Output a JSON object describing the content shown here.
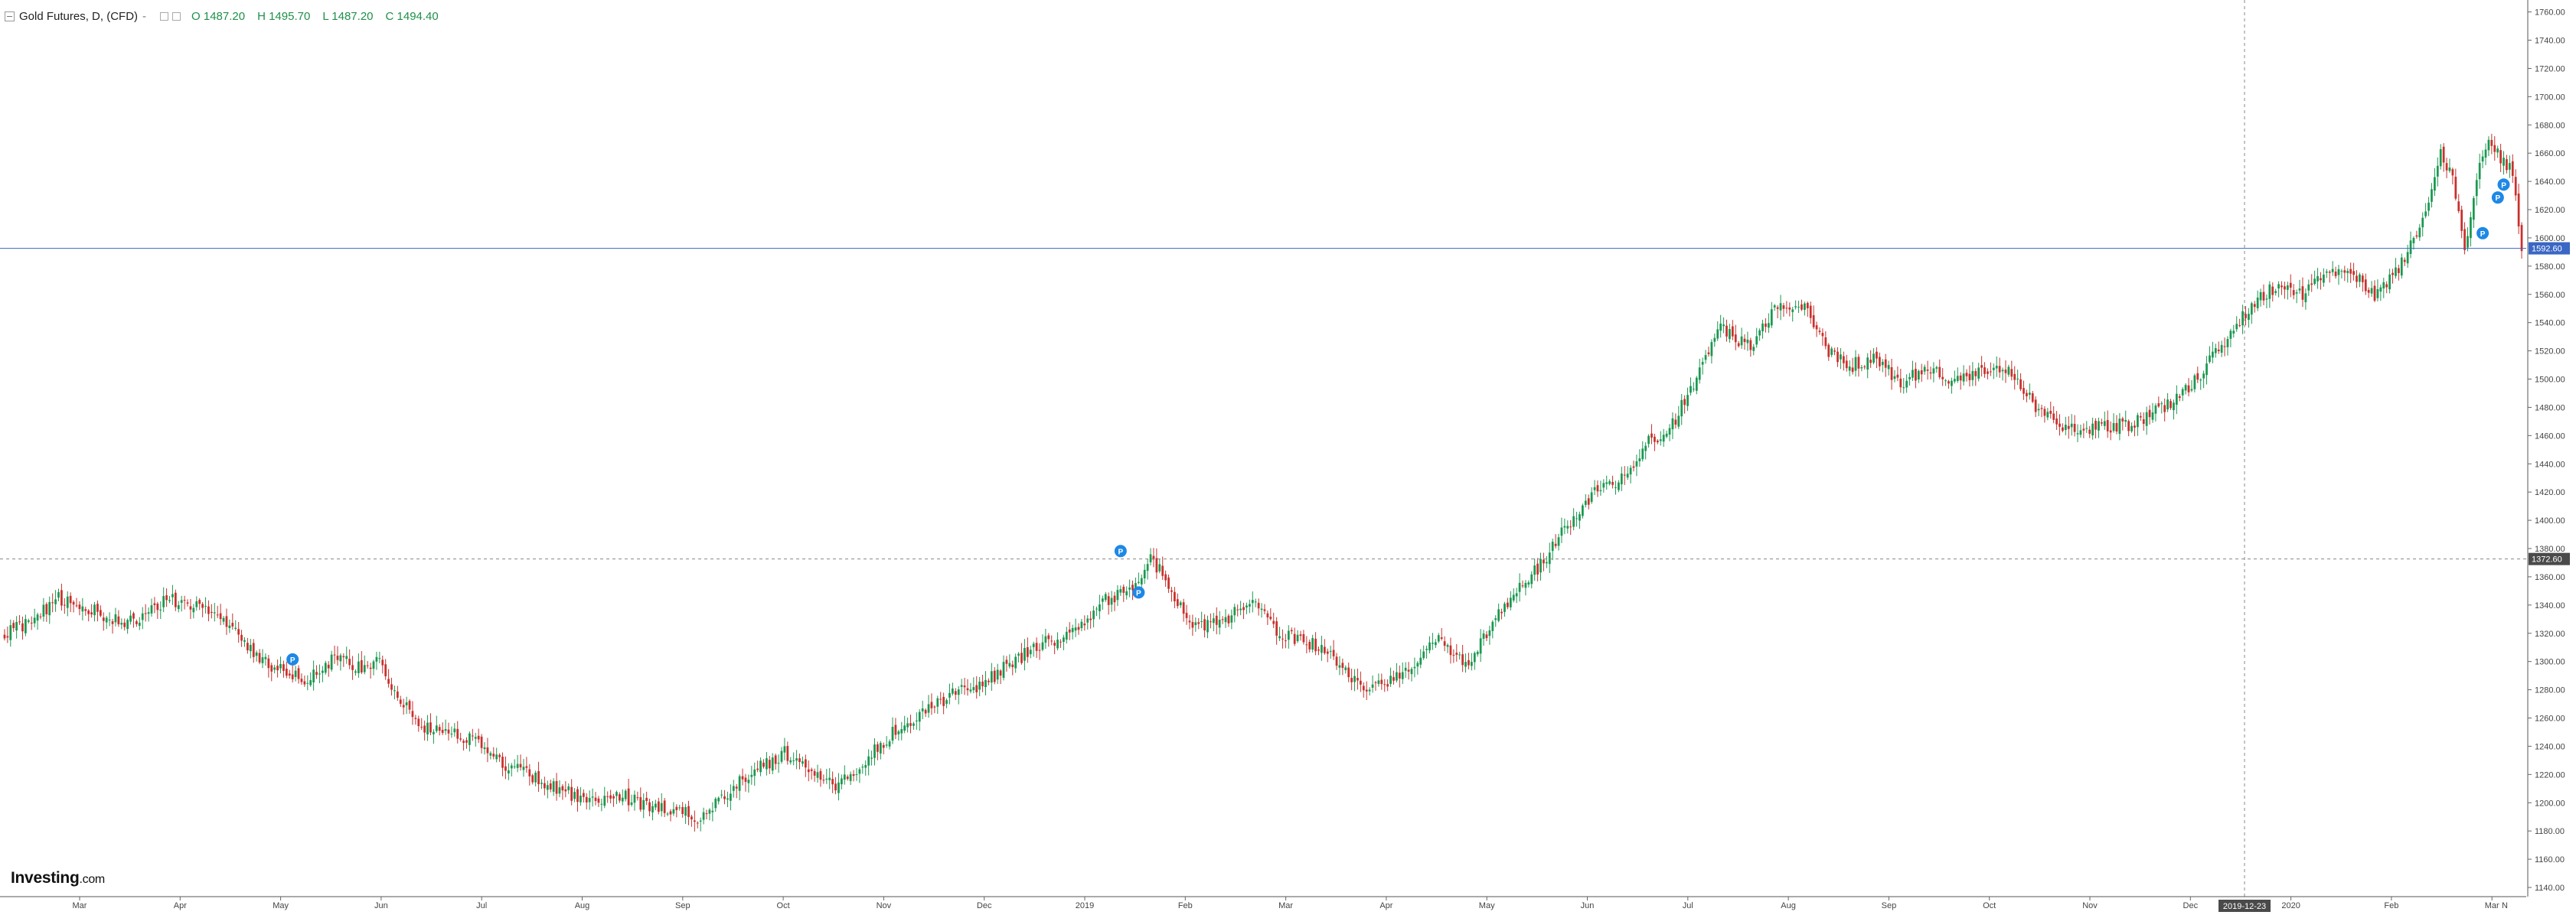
{
  "header": {
    "title": "Gold Futures, D, (CFD)",
    "separator": "-",
    "open": "O 1487.20",
    "high": "H 1495.70",
    "low": "L 1487.20",
    "close": "C 1494.40"
  },
  "logo": {
    "brand": "Investing",
    "suffix": ".com"
  },
  "colors": {
    "up": "#1a9850",
    "down": "#c9302c",
    "crosshair": "#888888",
    "last_price_line": "#3a66c4",
    "label_dark": "#4a4a4a",
    "label_blue": "#3a66c4",
    "marker": "#1e88e5"
  },
  "chart_data": {
    "type": "candlestick",
    "title": "Gold Futures, D, (CFD)",
    "ylim": [
      1130,
      1765
    ],
    "y_ticks": [
      1140,
      1160,
      1180,
      1200,
      1220,
      1240,
      1260,
      1280,
      1300,
      1320,
      1340,
      1360,
      1380,
      1400,
      1420,
      1440,
      1460,
      1480,
      1500,
      1520,
      1540,
      1560,
      1580,
      1600,
      1620,
      1640,
      1660,
      1680,
      1700,
      1720,
      1740,
      1760
    ],
    "x_labels": [
      "Mar",
      "Apr",
      "May",
      "Jun",
      "Jul",
      "Aug",
      "Sep",
      "Oct",
      "Nov",
      "Dec",
      "2019",
      "Feb",
      "Mar",
      "Apr",
      "May",
      "Jun",
      "Jul",
      "Aug",
      "Sep",
      "Oct",
      "Nov",
      "Dec",
      "2020",
      "Feb",
      "Mar"
    ],
    "x_label_partial": "N",
    "crosshair_price": "1372.60",
    "crosshair_date": "2019-12-23",
    "last_price": "1592.60",
    "price_anchors": [
      [
        0,
        1320
      ],
      [
        10,
        1330
      ],
      [
        18,
        1345
      ],
      [
        35,
        1332
      ],
      [
        42,
        1328
      ],
      [
        55,
        1344
      ],
      [
        68,
        1335
      ],
      [
        82,
        1310
      ],
      [
        88,
        1296
      ],
      [
        100,
        1288
      ],
      [
        110,
        1302
      ],
      [
        118,
        1296
      ],
      [
        125,
        1300
      ],
      [
        132,
        1272
      ],
      [
        138,
        1255
      ],
      [
        148,
        1250
      ],
      [
        158,
        1244
      ],
      [
        166,
        1228
      ],
      [
        176,
        1218
      ],
      [
        190,
        1205
      ],
      [
        198,
        1198
      ],
      [
        204,
        1206
      ],
      [
        212,
        1200
      ],
      [
        222,
        1196
      ],
      [
        232,
        1188
      ],
      [
        240,
        1206
      ],
      [
        250,
        1222
      ],
      [
        260,
        1236
      ],
      [
        268,
        1222
      ],
      [
        276,
        1212
      ],
      [
        286,
        1228
      ],
      [
        296,
        1250
      ],
      [
        306,
        1264
      ],
      [
        316,
        1276
      ],
      [
        326,
        1284
      ],
      [
        336,
        1300
      ],
      [
        346,
        1312
      ],
      [
        356,
        1322
      ],
      [
        366,
        1342
      ],
      [
        376,
        1350
      ],
      [
        382,
        1376
      ],
      [
        388,
        1352
      ],
      [
        398,
        1323
      ],
      [
        408,
        1330
      ],
      [
        416,
        1346
      ],
      [
        424,
        1320
      ],
      [
        434,
        1314
      ],
      [
        442,
        1306
      ],
      [
        452,
        1280
      ],
      [
        460,
        1284
      ],
      [
        470,
        1296
      ],
      [
        478,
        1318
      ],
      [
        488,
        1296
      ],
      [
        496,
        1330
      ],
      [
        504,
        1350
      ],
      [
        512,
        1368
      ],
      [
        520,
        1395
      ],
      [
        530,
        1420
      ],
      [
        540,
        1430
      ],
      [
        548,
        1455
      ],
      [
        556,
        1468
      ],
      [
        564,
        1502
      ],
      [
        572,
        1535
      ],
      [
        582,
        1522
      ],
      [
        590,
        1548
      ],
      [
        600,
        1554
      ],
      [
        608,
        1520
      ],
      [
        616,
        1510
      ],
      [
        624,
        1516
      ],
      [
        632,
        1496
      ],
      [
        640,
        1508
      ],
      [
        648,
        1500
      ],
      [
        658,
        1504
      ],
      [
        668,
        1508
      ],
      [
        678,
        1476
      ],
      [
        688,
        1464
      ],
      [
        698,
        1466
      ],
      [
        708,
        1468
      ],
      [
        718,
        1478
      ],
      [
        728,
        1494
      ],
      [
        738,
        1520
      ],
      [
        748,
        1550
      ],
      [
        758,
        1568
      ],
      [
        766,
        1560
      ],
      [
        774,
        1574
      ],
      [
        782,
        1576
      ],
      [
        790,
        1560
      ],
      [
        798,
        1578
      ],
      [
        806,
        1612
      ],
      [
        812,
        1660
      ],
      [
        816,
        1640
      ],
      [
        820,
        1590
      ],
      [
        824,
        1645
      ],
      [
        828,
        1670
      ],
      [
        832,
        1656
      ],
      [
        836,
        1648
      ],
      [
        839,
        1592
      ]
    ],
    "events": [
      {
        "label": "P",
        "bar": 96
      },
      {
        "label": "P",
        "bar": 372
      },
      {
        "label": "P",
        "bar": 378
      },
      {
        "label": "P",
        "bar": 826
      },
      {
        "label": "P",
        "bar": 829
      },
      {
        "label": "P",
        "bar": 833
      }
    ]
  }
}
